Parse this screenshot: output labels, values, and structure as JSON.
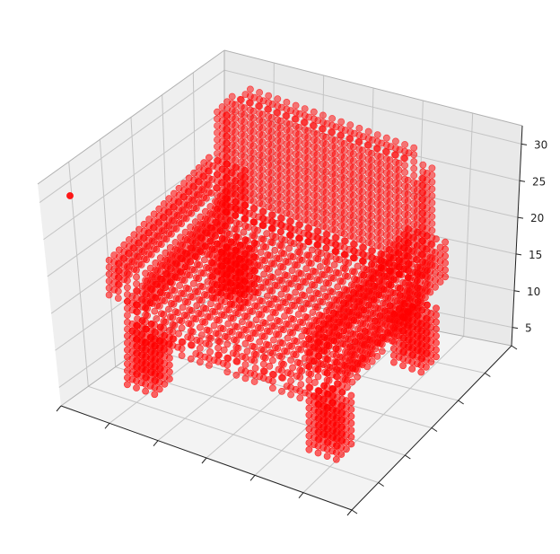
{
  "chart_data": {
    "type": "scatter",
    "projection": "3d",
    "title": "",
    "xlabel": "",
    "ylabel": "",
    "zlabel": "",
    "z_ticks": [
      "5",
      "10",
      "15",
      "20",
      "25",
      "30"
    ],
    "x_tick_labels_shown": false,
    "y_tick_labels_shown": false,
    "grid": true,
    "marker_color": "#ff0000",
    "pane_color": "#f2f2f2",
    "object": "voxelized armchair (seat, backrest, armrests, legs)",
    "outlier_point": {
      "note": "isolated point near upper left of plot"
    }
  }
}
